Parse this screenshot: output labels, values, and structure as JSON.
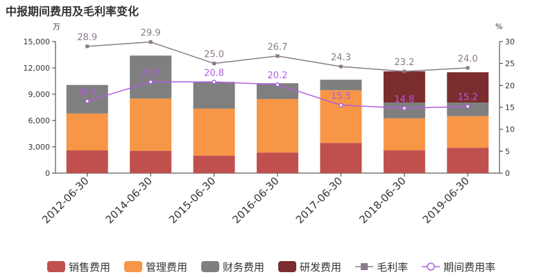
{
  "chart_data": {
    "type": "bar",
    "title": "中报期间费用及毛利率变化",
    "left_unit": "万",
    "right_unit": "%",
    "categories": [
      "2012-06-30",
      "2014-06-30",
      "2015-06-30",
      "2016-06-30",
      "2017-06-30",
      "2018-06-30",
      "2019-06-30"
    ],
    "ylim": [
      0,
      15000
    ],
    "yticks": [
      0,
      3000,
      6000,
      9000,
      12000,
      15000
    ],
    "ytick_labels": [
      "0",
      "3,000",
      "6,000",
      "9,000",
      "12,000",
      "15,000"
    ],
    "y2lim": [
      0,
      30
    ],
    "y2ticks": [
      0,
      5,
      10,
      15,
      20,
      25,
      30
    ],
    "series": [
      {
        "name": "销售费用",
        "kind": "stacked-bar",
        "color": "#c0504d",
        "values": [
          2600,
          2550,
          2000,
          2350,
          3450,
          2600,
          2900
        ]
      },
      {
        "name": "管理费用",
        "kind": "stacked-bar",
        "color": "#f79646",
        "values": [
          4200,
          5950,
          5350,
          6100,
          6000,
          3650,
          3600
        ]
      },
      {
        "name": "财务费用",
        "kind": "stacked-bar",
        "color": "#7f7f7f",
        "values": [
          3250,
          4900,
          3050,
          1800,
          1200,
          1800,
          1550
        ]
      },
      {
        "name": "研发费用",
        "kind": "stacked-bar",
        "color": "#7b2c2c",
        "values": [
          0,
          0,
          0,
          0,
          0,
          3550,
          3450
        ]
      },
      {
        "name": "毛利率",
        "kind": "line",
        "axis": "right",
        "color": "#8a7a8a",
        "marker": "square",
        "values": [
          28.9,
          29.9,
          25.0,
          26.7,
          24.3,
          23.2,
          24.0
        ],
        "labels": [
          "28.9",
          "29.9",
          "25.0",
          "26.7",
          "24.3",
          "23.2",
          "24.0"
        ]
      },
      {
        "name": "期间费用率",
        "kind": "line",
        "axis": "right",
        "color": "#b05ee0",
        "marker": "circle",
        "values": [
          16.4,
          20.8,
          20.8,
          20.2,
          15.5,
          14.8,
          15.2
        ],
        "labels": [
          "16.4",
          "20.8",
          "20.8",
          "20.2",
          "15.5",
          "14.8",
          "15.2"
        ]
      }
    ],
    "legend_position": "bottom",
    "grid": false
  }
}
